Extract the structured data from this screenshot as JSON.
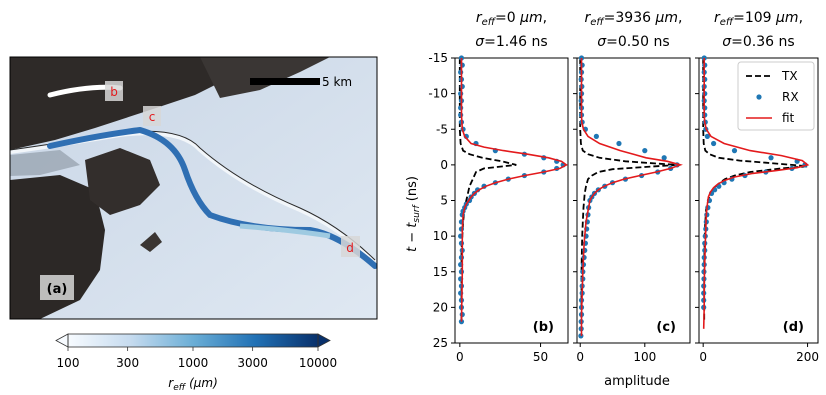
{
  "chart_data": [
    {
      "type": "image",
      "panel_label": "(a)",
      "scale_bar_label": "5 km",
      "marker_labels": [
        "b",
        "c",
        "d"
      ],
      "colorbar": {
        "label_base": "r",
        "label_sub": "eff",
        "label_unit": "(μm)",
        "scale": "log",
        "range": [
          100,
          10000
        ],
        "ticks": [
          "100",
          "300",
          "1000",
          "3000",
          "10000"
        ],
        "colors": [
          "#f7fbff",
          "#c6dbef",
          "#6baed6",
          "#2171b5",
          "#08306b"
        ]
      }
    },
    {
      "type": "line",
      "panel_label": "(b)",
      "title_parts": [
        "r",
        "eff",
        "=0 ",
        "μm",
        ","
      ],
      "subtitle_parts": [
        "σ",
        "=1.46 ns"
      ],
      "ylabel_parts": [
        "t − t",
        "surf",
        " (ns)"
      ],
      "xlabel": "",
      "xlim": [
        -3,
        67
      ],
      "ylim": [
        25,
        -15
      ],
      "xticks": [
        0,
        50
      ],
      "yticks": [
        -15,
        -10,
        -5,
        0,
        5,
        10,
        15,
        20,
        25
      ],
      "series": [
        {
          "name": "TX",
          "style": "dashed",
          "color": "#000000",
          "x": [
            0,
            0,
            0,
            0.5,
            2,
            6,
            14,
            26,
            35,
            15,
            10,
            8,
            6,
            5,
            4,
            3,
            2,
            1.5,
            1,
            1,
            1,
            1
          ],
          "y": [
            -15,
            -10,
            -5,
            -3,
            -2,
            -1.5,
            -1,
            -0.5,
            0,
            0.5,
            1,
            2,
            3,
            4,
            5,
            6,
            8,
            10,
            12,
            15,
            20,
            22
          ]
        },
        {
          "name": "RX",
          "style": "points",
          "color": "#1f77b4",
          "x": [
            1,
            1.5,
            0.5,
            1,
            1.5,
            0.5,
            1,
            0.5,
            0.5,
            1,
            2,
            4,
            10,
            22,
            40,
            52,
            60,
            64,
            60,
            52,
            40,
            30,
            22,
            15,
            11,
            9,
            7,
            6,
            4,
            3,
            2,
            1.5,
            1,
            1,
            0.5,
            1,
            1.5,
            1,
            0.5,
            1,
            0.5,
            1,
            0.5,
            1,
            1,
            1.5,
            1
          ],
          "y": [
            -15,
            -14,
            -13,
            -12,
            -11,
            -10,
            -9,
            -8,
            -7,
            -6,
            -5,
            -4,
            -3,
            -2,
            -1.5,
            -1,
            -0.5,
            0,
            0.5,
            1,
            1.5,
            2,
            2.5,
            3,
            3.5,
            4,
            4.5,
            5,
            5.5,
            6,
            6.5,
            7,
            8,
            9,
            10,
            11,
            12,
            13,
            14,
            15,
            16,
            17,
            18,
            19,
            20,
            21,
            22
          ]
        },
        {
          "name": "fit",
          "style": "solid",
          "color": "#e31a1c",
          "x": [
            1,
            1,
            1,
            1.5,
            3,
            7,
            15,
            27,
            42,
            55,
            63,
            66,
            62,
            52,
            40,
            30,
            22,
            16,
            12,
            9,
            7,
            5.5,
            4,
            3,
            2,
            1.5,
            1.5,
            1
          ],
          "y": [
            -15,
            -10,
            -7,
            -5,
            -4,
            -3,
            -2.5,
            -2,
            -1.5,
            -1,
            -0.5,
            0,
            0.5,
            1,
            1.5,
            2,
            2.5,
            3,
            3.5,
            4,
            4.5,
            5,
            5.5,
            6,
            7,
            9,
            15,
            22
          ]
        }
      ]
    },
    {
      "type": "line",
      "panel_label": "(c)",
      "title_parts": [
        "r",
        "eff",
        "=3936 ",
        "μm",
        ","
      ],
      "subtitle_parts": [
        "σ",
        "=0.50 ns"
      ],
      "xlabel": "amplitude",
      "xlim": [
        -5,
        170
      ],
      "ylim": [
        25,
        -15
      ],
      "xticks": [
        0,
        100
      ],
      "yticks": [
        -15,
        -10,
        -5,
        0,
        5,
        10,
        15,
        20,
        25
      ],
      "series": [
        {
          "name": "TX",
          "style": "dashed",
          "color": "#000000",
          "x": [
            0,
            0,
            0,
            1,
            4,
            12,
            30,
            70,
            115,
            150,
            100,
            50,
            28,
            18,
            12,
            9,
            7,
            5,
            4,
            3,
            2,
            2
          ],
          "y": [
            -15,
            -10,
            -5,
            -3,
            -2,
            -1.5,
            -1,
            -0.5,
            -0.2,
            0,
            0.3,
            0.6,
            1,
            1.5,
            2,
            3,
            4,
            6,
            8,
            10,
            15,
            22
          ]
        },
        {
          "name": "RX",
          "style": "points",
          "color": "#1f77b4",
          "x": [
            2,
            3,
            2,
            1.5,
            2.5,
            2,
            1.5,
            2,
            2,
            3,
            8,
            25,
            60,
            100,
            130,
            150,
            140,
            120,
            95,
            70,
            50,
            38,
            28,
            22,
            18,
            15,
            13,
            12,
            11,
            10,
            9,
            8,
            7,
            6,
            5,
            4,
            4,
            3,
            3,
            2,
            2,
            2,
            1.5,
            1.5,
            1
          ],
          "y": [
            -15,
            -14,
            -13,
            -12,
            -11,
            -10,
            -9,
            -8,
            -7,
            -6,
            -5,
            -4,
            -3,
            -2,
            -1,
            0,
            0.5,
            1,
            1.5,
            2,
            2.5,
            3,
            3.5,
            4,
            4.5,
            5,
            6,
            7,
            8,
            9,
            10,
            11,
            12,
            13,
            14,
            15,
            16,
            17,
            18,
            19,
            20,
            21,
            22,
            23,
            24
          ]
        },
        {
          "name": "fit",
          "style": "solid",
          "color": "#e31a1c",
          "x": [
            2,
            2,
            2,
            2.5,
            5,
            12,
            30,
            62,
            102,
            135,
            155,
            140,
            118,
            92,
            68,
            50,
            37,
            28,
            22,
            18,
            15,
            13,
            11,
            9,
            8,
            6,
            5,
            4,
            3,
            2,
            2
          ],
          "y": [
            -15,
            -10,
            -7,
            -6,
            -5,
            -4,
            -3,
            -2,
            -1,
            -0.5,
            0,
            0.5,
            1,
            1.5,
            2,
            2.5,
            3,
            3.5,
            4,
            4.5,
            5,
            6,
            7,
            8,
            9,
            11,
            13,
            15,
            18,
            21,
            24
          ]
        }
      ]
    },
    {
      "type": "line",
      "panel_label": "(d)",
      "title_parts": [
        "r",
        "eff",
        "=109 ",
        "μm",
        ","
      ],
      "subtitle_parts": [
        "σ",
        "=0.36 ns"
      ],
      "xlabel": "",
      "xlim": [
        -8,
        220
      ],
      "ylim": [
        25,
        -15
      ],
      "xticks": [
        0,
        200
      ],
      "yticks": [
        -15,
        -10,
        -5,
        0,
        5,
        10,
        15,
        20,
        25
      ],
      "legend": [
        "TX",
        "RX",
        "fit"
      ],
      "legend_position": "top-right",
      "series": [
        {
          "name": "TX",
          "style": "dashed",
          "color": "#000000",
          "x": [
            0,
            0,
            0,
            1,
            4,
            12,
            30,
            70,
            120,
            170,
            200,
            150,
            90,
            60,
            42,
            32,
            24,
            18,
            14,
            10,
            6,
            4,
            3,
            2,
            2
          ],
          "y": [
            -15,
            -10,
            -5,
            -3,
            -2,
            -1.5,
            -1,
            -0.6,
            -0.3,
            0,
            0.2,
            0.5,
            1,
            1.5,
            2,
            2.5,
            3,
            3.5,
            4,
            5,
            6,
            8,
            10,
            15,
            22
          ]
        },
        {
          "name": "RX",
          "style": "points",
          "color": "#1f77b4",
          "x": [
            2,
            3,
            2,
            3,
            2,
            3,
            2,
            3,
            3,
            4,
            5,
            8,
            20,
            60,
            130,
            180,
            195,
            170,
            120,
            80,
            55,
            40,
            30,
            22,
            16,
            12,
            9,
            7,
            6,
            5,
            4,
            3,
            3,
            2,
            2,
            1.5,
            1.5,
            1,
            1,
            1,
            1
          ],
          "y": [
            -15,
            -14,
            -13,
            -12,
            -11,
            -10,
            -9,
            -8,
            -7,
            -6,
            -5,
            -4,
            -3,
            -2,
            -1,
            -0.5,
            0,
            0.5,
            1,
            1.5,
            2,
            2.5,
            3,
            3.5,
            4,
            5,
            6,
            7,
            8,
            9,
            10,
            11,
            12,
            13,
            14,
            15,
            16,
            17,
            18,
            19,
            20
          ]
        },
        {
          "name": "fit",
          "style": "solid",
          "color": "#e31a1c",
          "x": [
            2,
            2,
            2,
            3,
            6,
            15,
            40,
            90,
            150,
            190,
            200,
            180,
            140,
            95,
            60,
            40,
            28,
            20,
            14,
            10,
            8,
            6,
            5,
            4,
            3,
            2,
            2,
            1
          ],
          "y": [
            -15,
            -10,
            -7,
            -6,
            -5,
            -4,
            -3,
            -2,
            -1.3,
            -0.6,
            0,
            0.4,
            0.8,
            1.2,
            1.7,
            2.2,
            2.7,
            3.2,
            3.8,
            4.5,
            5.5,
            7,
            9,
            11,
            14,
            17,
            20,
            23
          ]
        }
      ]
    }
  ]
}
